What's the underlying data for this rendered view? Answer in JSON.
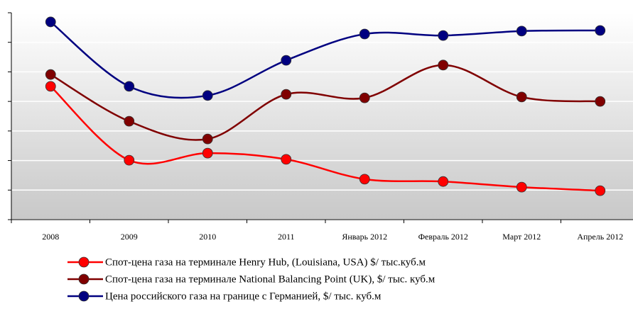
{
  "chart_data": {
    "type": "line",
    "categories": [
      "2008",
      "2009",
      "2010",
      "2011",
      "Январь 2012",
      "Февраль 2012",
      "Март 2012",
      "Апрель 2012"
    ],
    "series": [
      {
        "name": "Спот-цена газа на терминале Henry Hub, (Louisiana, USA) $/ тыс.куб.м",
        "color": "#ff0000",
        "values": [
          451,
          201,
          225,
          204,
          137,
          129,
          110,
          98
        ]
      },
      {
        "name": "Спот-цена газа на терминале National Balancing Point (UK), $/ тыс. куб.м",
        "color": "#800000",
        "values": [
          491,
          333,
          273,
          424,
          412,
          523,
          415,
          400
        ]
      },
      {
        "name": "Цена российского газа на границе с Германией, $/ тыс. куб.м",
        "color": "#000080",
        "values": [
          669,
          451,
          420,
          539,
          628,
          623,
          638,
          640
        ]
      }
    ],
    "ylim": [
      0,
      700
    ],
    "yticks": [
      0,
      100,
      200,
      300,
      400,
      500,
      600,
      700
    ],
    "grid": true
  }
}
